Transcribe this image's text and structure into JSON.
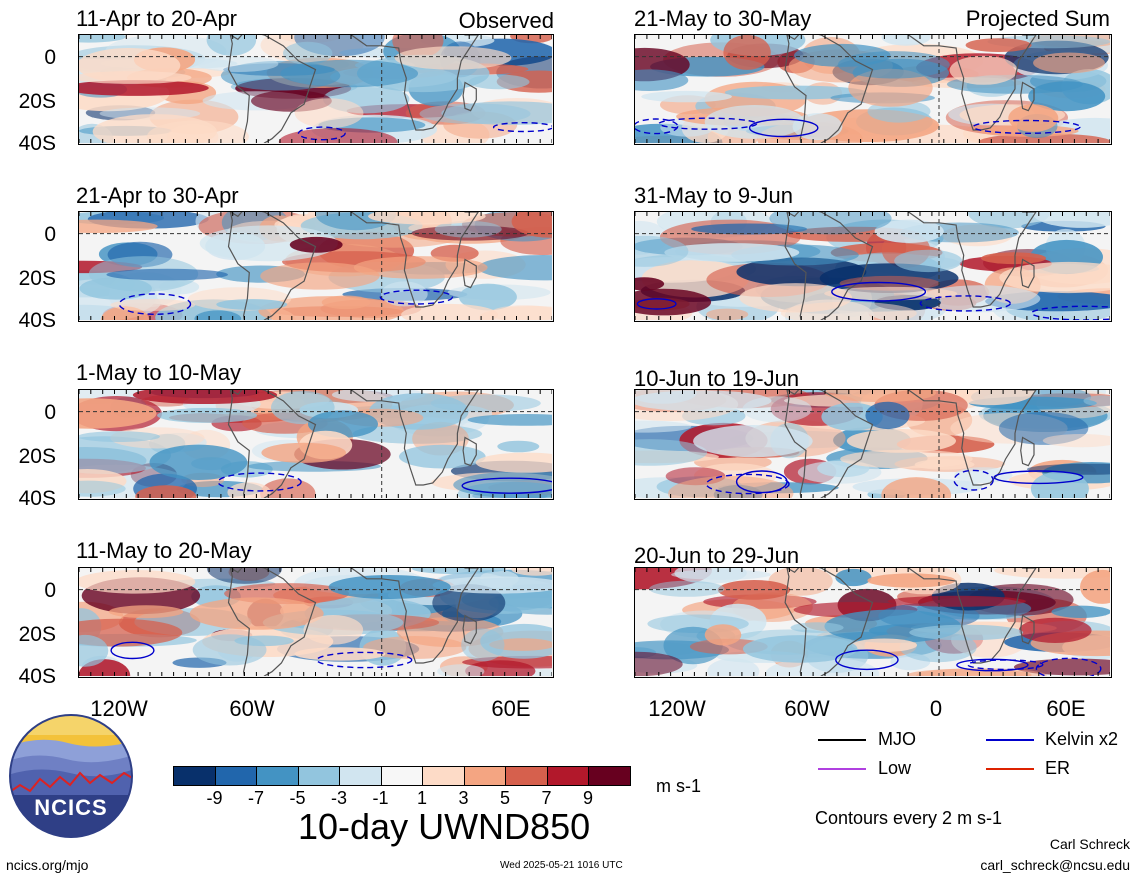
{
  "panels": [
    {
      "title": "11-Apr to 20-Apr",
      "tag": "Observed"
    },
    {
      "title": "21-Apr to 30-Apr",
      "tag": ""
    },
    {
      "title": "1-May to 10-May",
      "tag": ""
    },
    {
      "title": "11-May to 20-May",
      "tag": ""
    },
    {
      "title": "21-May to 30-May",
      "tag": "Projected Sum"
    },
    {
      "title": "31-May to 9-Jun",
      "tag": ""
    },
    {
      "title": "10-Jun to 19-Jun",
      "tag": ""
    },
    {
      "title": "20-Jun to 29-Jun",
      "tag": ""
    }
  ],
  "lat_ticks": [
    "0",
    "20S",
    "40S"
  ],
  "lon_ticks": [
    "120W",
    "60W",
    "0",
    "60E"
  ],
  "colorbar": {
    "colors": [
      "#08306b",
      "#2166ac",
      "#4393c3",
      "#92c5de",
      "#d1e5f0",
      "#f7f7f7",
      "#fddbc7",
      "#f4a582",
      "#d6604d",
      "#b2182b",
      "#67001f"
    ],
    "ticks": [
      "-9",
      "-7",
      "-5",
      "-3",
      "-1",
      "1",
      "3",
      "5",
      "7",
      "9"
    ],
    "units": "m s-1",
    "title": "10-day UWND850"
  },
  "legend": {
    "items": [
      {
        "label": "MJO",
        "color": "#000000"
      },
      {
        "label": "Kelvin x2",
        "color": "#0000cc"
      },
      {
        "label": "Low",
        "color": "#b040e0"
      },
      {
        "label": "ER",
        "color": "#dd2200"
      }
    ],
    "contour_note": "Contours every 2 m s-1"
  },
  "logo": {
    "text": "NCICS",
    "icon": "ncics-logo-icon"
  },
  "footer": {
    "url": "ncics.org/mjo",
    "timestamp": "Wed 2025-05-21 1016 UTC",
    "author": "Carl Schreck",
    "email": "carl_schreck@ncsu.edu"
  }
}
